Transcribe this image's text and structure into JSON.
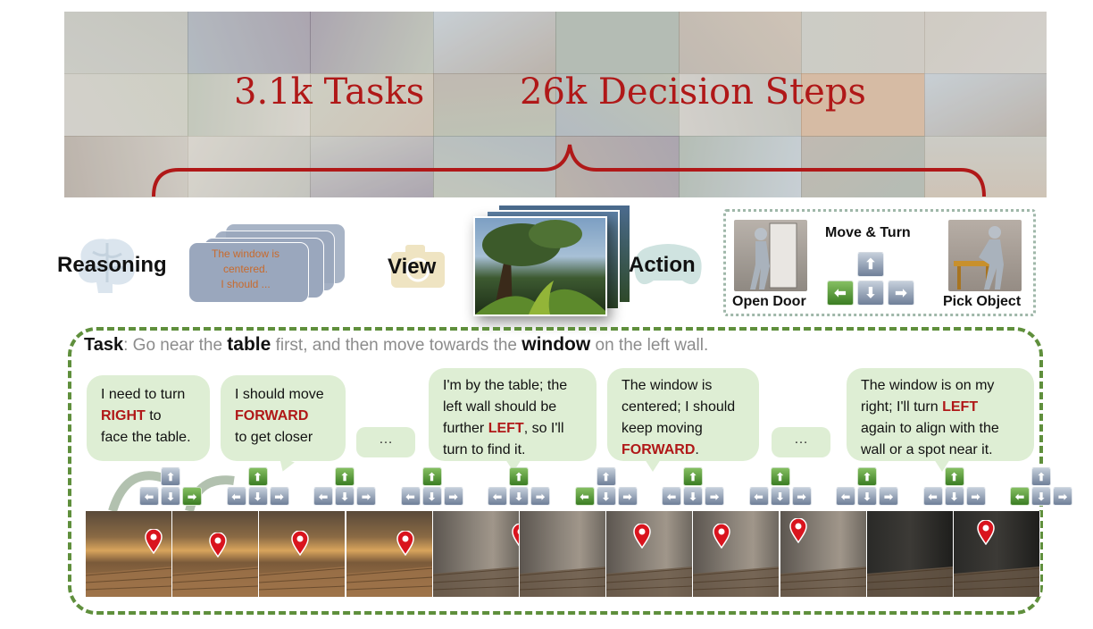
{
  "banner": {
    "stat_tasks": "3.1k Tasks",
    "stat_steps": "26k Decision Steps",
    "accent": "#b01818"
  },
  "modalities": {
    "reasoning_label": "Reasoning",
    "reasoning_example": [
      "The window is",
      "centered.",
      "I should ..."
    ],
    "view_label": "View",
    "action_label": "Action"
  },
  "action_space": {
    "open_door": "Open Door",
    "move_turn": "Move & Turn",
    "pick_object": "Pick Object"
  },
  "task": {
    "prefix": "Task",
    "text_1": ": Go near the ",
    "kw_1": "table",
    "text_2": " first, and then move towards the ",
    "kw_2": "window",
    "text_3": " on the left wall."
  },
  "bubbles": [
    {
      "parts": [
        "I need to turn",
        "RIGHT",
        " to",
        "face the table."
      ]
    },
    {
      "parts": [
        "I should move",
        "FORWARD",
        "to get closer"
      ]
    },
    {
      "text": "…"
    },
    {
      "parts": [
        "I'm by the table; the",
        "left wall should be",
        "further ",
        "LEFT",
        ", so I'll",
        "turn to find it."
      ]
    },
    {
      "parts": [
        "The window is",
        "centered; I should",
        "keep moving",
        "FORWARD",
        "."
      ]
    },
    {
      "text": "…"
    },
    {
      "parts": [
        "The window is on my",
        "right; I'll turn ",
        "LEFT",
        "again to align with the",
        "wall or a spot near it."
      ]
    }
  ],
  "steps": [
    "right",
    "forward",
    "forward",
    "forward",
    "forward",
    "left",
    "forward",
    "forward",
    "forward",
    "forward",
    "left"
  ],
  "arrows": {
    "up": "⬆",
    "down": "⬇",
    "left": "⬅",
    "right": "➡"
  },
  "colors": {
    "highlight_key": "#4e8f2e",
    "neutral_key": "#7d8ca3",
    "task_border": "#5f8f3c"
  }
}
